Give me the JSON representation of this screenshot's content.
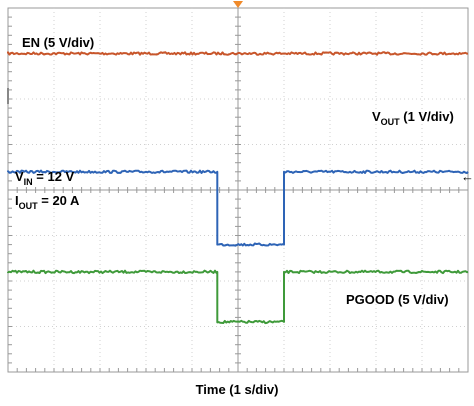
{
  "chart_data": {
    "type": "line",
    "title": "",
    "xlabel": "Time (1 s/div)",
    "ylabel": "",
    "grid": true,
    "divisions": {
      "x": 10,
      "y": 8
    },
    "xlim": [
      0,
      10
    ],
    "ylim": [
      0,
      8
    ],
    "colors": {
      "EN": "#c8562b",
      "VOUT": "#2e64b6",
      "PGOOD": "#3f9a3a",
      "grid": "#d0d0d0",
      "frame": "#999999",
      "marker": "#f08a2a"
    },
    "series": [
      {
        "name": "EN (5 V/div)",
        "color_key": "EN",
        "x": [
          0,
          10
        ],
        "y": [
          7.0,
          7.0
        ]
      },
      {
        "name": "VOUT (1 V/div)",
        "color_key": "VOUT",
        "x": [
          0,
          4.55,
          4.55,
          6.0,
          6.0,
          10
        ],
        "y": [
          4.4,
          4.4,
          2.8,
          2.8,
          4.4,
          4.4
        ]
      },
      {
        "name": "PGOOD (5 V/div)",
        "color_key": "PGOOD",
        "x": [
          0,
          4.55,
          4.55,
          6.0,
          6.0,
          10
        ],
        "y": [
          2.2,
          2.2,
          1.1,
          1.1,
          2.2,
          2.2
        ]
      }
    ],
    "annotations": {
      "en": "EN (5 V/div)",
      "vout_main": "V",
      "vout_sub": "OUT",
      "vout_rest": " (1 V/div)",
      "vin_main": "V",
      "vin_sub": "IN",
      "vin_rest": " = 12 V",
      "iout_main": "I",
      "iout_sub": "OUT",
      "iout_rest": " = 20 A",
      "pgood": "PGOOD (5 V/div)",
      "ref_arrow": "←"
    }
  }
}
